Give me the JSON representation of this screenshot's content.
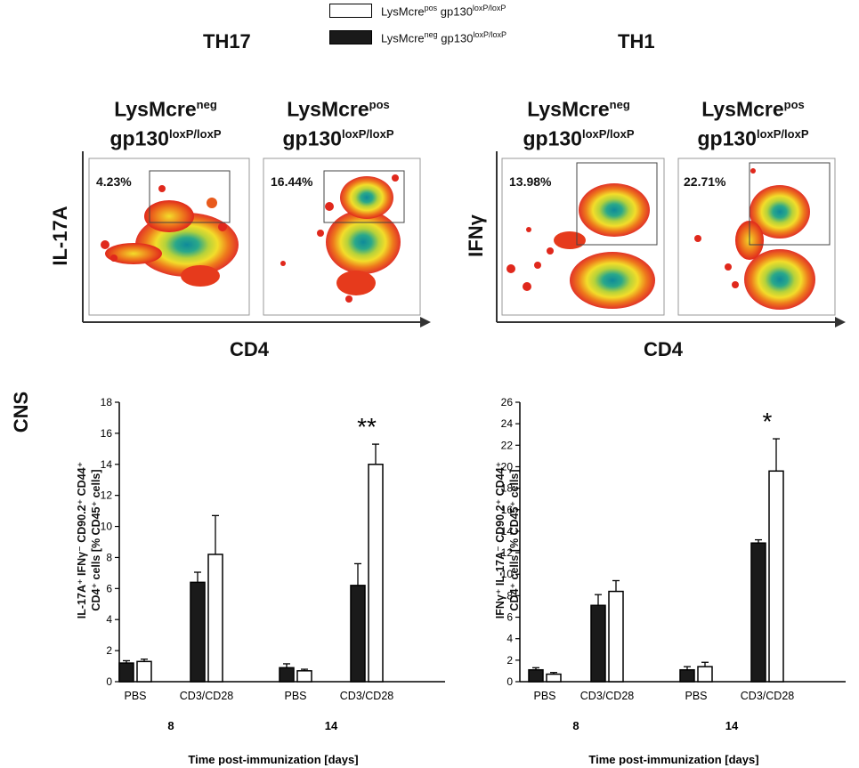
{
  "legend": {
    "pos": {
      "name": "LysMcre",
      "name_sup": "pos",
      "gene": " gp130",
      "gene_sup": "loxP/loxP",
      "color": "#ffffff"
    },
    "neg": {
      "name": "LysMcre",
      "name_sup": "neg",
      "gene": " gp130",
      "gene_sup": "loxP/loxP",
      "color": "#1a1a1a"
    }
  },
  "flow": {
    "th17": {
      "title": "TH17",
      "y_label": "IL-17A",
      "x_label": "CD4",
      "panels": [
        {
          "line1": "LysMcre",
          "line1_sup": "neg",
          "line2": "gp130",
          "line2_sup": "loxP/loxP",
          "gate_percent": "4.23%"
        },
        {
          "line1": "LysMcre",
          "line1_sup": "pos",
          "line2": "gp130",
          "line2_sup": "loxP/loxP",
          "gate_percent": "16.44%"
        }
      ]
    },
    "th1": {
      "title": "TH1",
      "y_label": "IFNγ",
      "x_label": "CD4",
      "panels": [
        {
          "line1": "LysMcre",
          "line1_sup": "neg",
          "line2": "gp130",
          "line2_sup": "loxP/loxP",
          "gate_percent": "13.98%"
        },
        {
          "line1": "LysMcre",
          "line1_sup": "pos",
          "line2": "gp130",
          "line2_sup": "loxP/loxP",
          "gate_percent": "22.71%"
        }
      ]
    }
  },
  "cns_label": "CNS",
  "chart_data": [
    {
      "type": "bar",
      "title": "",
      "ylabel_line1": "IL-17A⁺ IFNγ⁻ CD90.2⁺ CD44⁺",
      "ylabel_line2": "CD4⁺ cells [% CD45⁺ cells]",
      "xlabel": "Time post-immunization [days]",
      "ylim": [
        0,
        18
      ],
      "yticks": [
        0,
        2,
        4,
        6,
        8,
        10,
        12,
        14,
        16,
        18
      ],
      "groups": [
        {
          "day": "8",
          "categories": [
            "PBS",
            "CD3/CD28"
          ]
        },
        {
          "day": "14",
          "categories": [
            "PBS",
            "CD3/CD28"
          ]
        }
      ],
      "series": [
        {
          "name": "LysMcre neg gp130 loxP/loxP",
          "color": "#1a1a1a",
          "values": [
            1.2,
            6.4,
            0.9,
            6.2
          ],
          "errors": [
            0.15,
            0.65,
            0.25,
            1.4
          ]
        },
        {
          "name": "LysMcre pos gp130 loxP/loxP",
          "color": "#ffffff",
          "values": [
            1.3,
            8.2,
            0.7,
            14.0
          ],
          "errors": [
            0.15,
            2.5,
            0.1,
            1.3
          ]
        }
      ],
      "annotations": [
        {
          "category_index": 3,
          "text": "**"
        }
      ]
    },
    {
      "type": "bar",
      "title": "",
      "ylabel_line1": "IFNγ⁺ IL-17A⁻ CD90.2⁺ CD44⁺",
      "ylabel_line2": "CD4⁺ cells [% CD45⁺ cells]",
      "xlabel": "Time post-immunization [days]",
      "ylim": [
        0,
        26
      ],
      "yticks": [
        0,
        2,
        4,
        6,
        8,
        10,
        12,
        14,
        16,
        18,
        20,
        22,
        24,
        26
      ],
      "groups": [
        {
          "day": "8",
          "categories": [
            "PBS",
            "CD3/CD28"
          ]
        },
        {
          "day": "14",
          "categories": [
            "PBS",
            "CD3/CD28"
          ]
        }
      ],
      "series": [
        {
          "name": "LysMcre neg gp130 loxP/loxP",
          "color": "#1a1a1a",
          "values": [
            1.1,
            7.1,
            1.1,
            12.9
          ],
          "errors": [
            0.2,
            1.0,
            0.3,
            0.3
          ]
        },
        {
          "name": "LysMcre pos gp130 loxP/loxP",
          "color": "#ffffff",
          "values": [
            0.7,
            8.4,
            1.4,
            19.6
          ],
          "errors": [
            0.15,
            1.0,
            0.4,
            3.0
          ]
        }
      ],
      "annotations": [
        {
          "category_index": 3,
          "text": "*"
        }
      ]
    }
  ]
}
